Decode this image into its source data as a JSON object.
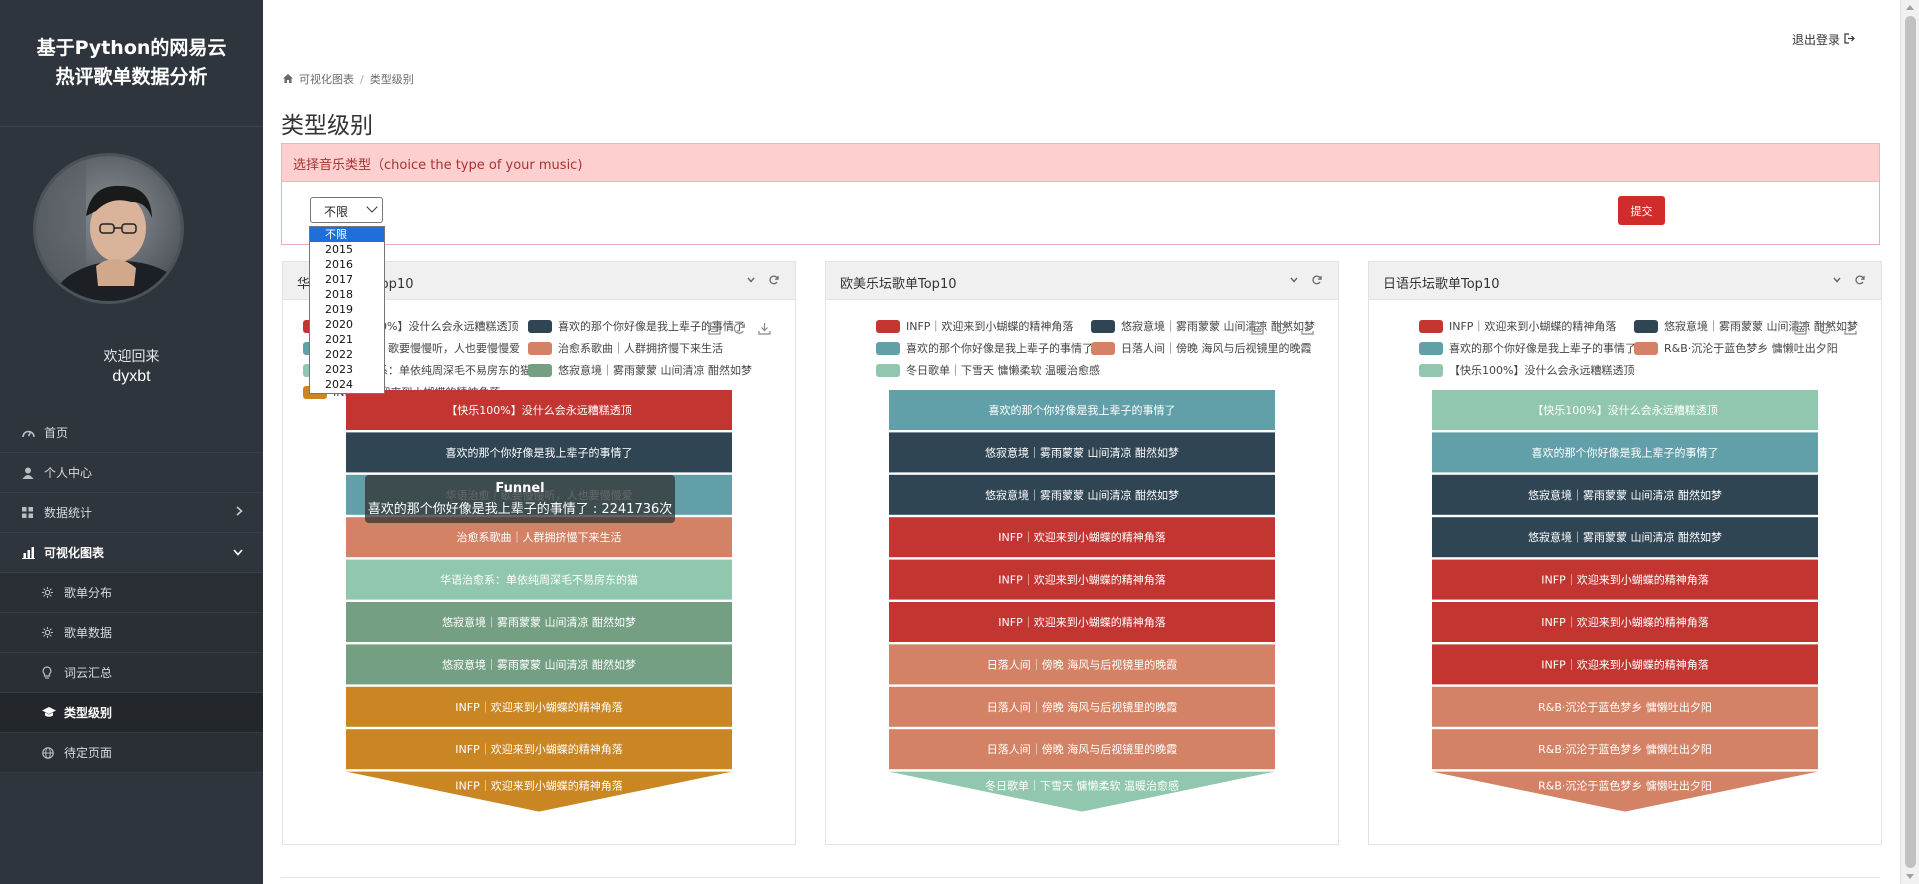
{
  "sidebar": {
    "brand_line1": "基于Python的网易云",
    "brand_line2": "热评歌单数据分析",
    "welcome": "欢迎回来",
    "username": "dyxbt",
    "items": [
      {
        "label": "首页",
        "icon": "dashboard-icon"
      },
      {
        "label": "个人中心",
        "icon": "user-icon"
      },
      {
        "label": "数据统计",
        "icon": "grid-icon"
      },
      {
        "label": "可视化图表",
        "icon": "bar-chart-icon"
      },
      {
        "label": "歌单分布",
        "icon": "sun-icon"
      },
      {
        "label": "歌单数据",
        "icon": "sun-icon"
      },
      {
        "label": "词云汇总",
        "icon": "bulb-icon"
      },
      {
        "label": "类型级别",
        "icon": "graduation-cap-icon"
      },
      {
        "label": "待定页面",
        "icon": "globe-icon"
      }
    ]
  },
  "header": {
    "logout": "退出登录"
  },
  "breadcrumb": {
    "home": "可视化图表",
    "current": "类型级别"
  },
  "page_title": "类型级别",
  "alert_text": "选择音乐类型（choice the type of your music)",
  "filter": {
    "selected": "不限",
    "options": [
      "不限",
      "2015",
      "2016",
      "2017",
      "2018",
      "2019",
      "2020",
      "2021",
      "2022",
      "2023",
      "2024"
    ],
    "submit_label": "提交"
  },
  "tooltip": {
    "title": "Funnel",
    "text": "喜欢的那个你好像是我上辈子的事情了 : 2241736次"
  },
  "colors": {
    "red": "#c23531",
    "navy": "#2f4554",
    "teal": "#61a0a8",
    "salmon": "#d48265",
    "mint": "#91c7ae",
    "green": "#749f83",
    "orange": "#ca8622",
    "sidebar": "#2f353c",
    "alert": "#fdcfcf",
    "submit": "#d12b2b"
  },
  "charts": [
    {
      "title": "华语乐坛歌单Top10",
      "legend": [
        {
          "name": "【快乐100%】没什么会永远糟糕透顶",
          "color": "#c23531"
        },
        {
          "name": "喜欢的那个你好像是我上辈子的事情了",
          "color": "#2f4554"
        },
        {
          "name": "华语治愈｜歌要慢慢听，人也要慢慢爱",
          "color": "#61a0a8"
        },
        {
          "name": "治愈系歌曲｜人群拥挤慢下来生活",
          "color": "#d48265"
        },
        {
          "name": "华语治愈系：单依纯周深毛不易房东的猫",
          "color": "#91c7ae"
        },
        {
          "name": "悠寂意境｜雾雨蒙蒙 山间清凉 酣然如梦",
          "color": "#749f83"
        },
        {
          "name": "INFP｜欢迎来到小蝴蝶的精神角落",
          "color": "#ca8622"
        }
      ],
      "layers": [
        {
          "name": "【快乐100%】没什么会永远糟糕透顶",
          "color": "#c23531"
        },
        {
          "name": "喜欢的那个你好像是我上辈子的事情了",
          "color": "#2f4554"
        },
        {
          "name": "华语治愈｜歌要慢慢听，人也要慢慢爱",
          "color": "#61a0a8"
        },
        {
          "name": "治愈系歌曲｜人群拥挤慢下来生活",
          "color": "#d48265"
        },
        {
          "name": "华语治愈系：单依纯周深毛不易房东的猫",
          "color": "#91c7ae"
        },
        {
          "name": "悠寂意境｜雾雨蒙蒙 山间清凉 酣然如梦",
          "color": "#749f83"
        },
        {
          "name": "悠寂意境｜雾雨蒙蒙 山间清凉 酣然如梦",
          "color": "#749f83"
        },
        {
          "name": "INFP｜欢迎来到小蝴蝶的精神角落",
          "color": "#ca8622"
        },
        {
          "name": "INFP｜欢迎来到小蝴蝶的精神角落",
          "color": "#ca8622"
        },
        {
          "name": "INFP｜欢迎来到小蝴蝶的精神角落",
          "color": "#ca8622"
        }
      ]
    },
    {
      "title": "欧美乐坛歌单Top10",
      "legend": [
        {
          "name": "INFP｜欢迎来到小蝴蝶的精神角落",
          "color": "#c23531"
        },
        {
          "name": "悠寂意境｜雾雨蒙蒙 山间清凉 酣然如梦",
          "color": "#2f4554"
        },
        {
          "name": "喜欢的那个你好像是我上辈子的事情了",
          "color": "#61a0a8"
        },
        {
          "name": "日落人间｜傍晚 海风与后视镜里的晚霞",
          "color": "#d48265"
        },
        {
          "name": "冬日歌单｜下雪天 慵懒柔软 温暖治愈感",
          "color": "#91c7ae"
        }
      ],
      "layers": [
        {
          "name": "喜欢的那个你好像是我上辈子的事情了",
          "color": "#61a0a8"
        },
        {
          "name": "悠寂意境｜雾雨蒙蒙 山间清凉 酣然如梦",
          "color": "#2f4554"
        },
        {
          "name": "悠寂意境｜雾雨蒙蒙 山间清凉 酣然如梦",
          "color": "#2f4554"
        },
        {
          "name": "INFP｜欢迎来到小蝴蝶的精神角落",
          "color": "#c23531"
        },
        {
          "name": "INFP｜欢迎来到小蝴蝶的精神角落",
          "color": "#c23531"
        },
        {
          "name": "INFP｜欢迎来到小蝴蝶的精神角落",
          "color": "#c23531"
        },
        {
          "name": "日落人间｜傍晚 海风与后视镜里的晚霞",
          "color": "#d48265"
        },
        {
          "name": "日落人间｜傍晚 海风与后视镜里的晚霞",
          "color": "#d48265"
        },
        {
          "name": "日落人间｜傍晚 海风与后视镜里的晚霞",
          "color": "#d48265"
        },
        {
          "name": "冬日歌单｜下雪天 慵懒柔软 温暖治愈感",
          "color": "#91c7ae"
        }
      ]
    },
    {
      "title": "日语乐坛歌单Top10",
      "legend": [
        {
          "name": "INFP｜欢迎来到小蝴蝶的精神角落",
          "color": "#c23531"
        },
        {
          "name": "悠寂意境｜雾雨蒙蒙 山间清凉 酣然如梦",
          "color": "#2f4554"
        },
        {
          "name": "喜欢的那个你好像是我上辈子的事情了",
          "color": "#61a0a8"
        },
        {
          "name": "R&B·沉沦于蓝色梦乡 慵懒吐出夕阳",
          "color": "#d48265"
        },
        {
          "name": "【快乐100%】没什么会永远糟糕透顶",
          "color": "#91c7ae"
        }
      ],
      "layers": [
        {
          "name": "【快乐100%】没什么会永远糟糕透顶",
          "color": "#91c7ae"
        },
        {
          "name": "喜欢的那个你好像是我上辈子的事情了",
          "color": "#61a0a8"
        },
        {
          "name": "悠寂意境｜雾雨蒙蒙 山间清凉 酣然如梦",
          "color": "#2f4554"
        },
        {
          "name": "悠寂意境｜雾雨蒙蒙 山间清凉 酣然如梦",
          "color": "#2f4554"
        },
        {
          "name": "INFP｜欢迎来到小蝴蝶的精神角落",
          "color": "#c23531"
        },
        {
          "name": "INFP｜欢迎来到小蝴蝶的精神角落",
          "color": "#c23531"
        },
        {
          "name": "INFP｜欢迎来到小蝴蝶的精神角落",
          "color": "#c23531"
        },
        {
          "name": "R&B·沉沦于蓝色梦乡 慵懒吐出夕阳",
          "color": "#d48265"
        },
        {
          "name": "R&B·沉沦于蓝色梦乡 慵懒吐出夕阳",
          "color": "#d48265"
        },
        {
          "name": "R&B·沉沦于蓝色梦乡 慵懒吐出夕阳",
          "color": "#d48265"
        }
      ]
    }
  ]
}
